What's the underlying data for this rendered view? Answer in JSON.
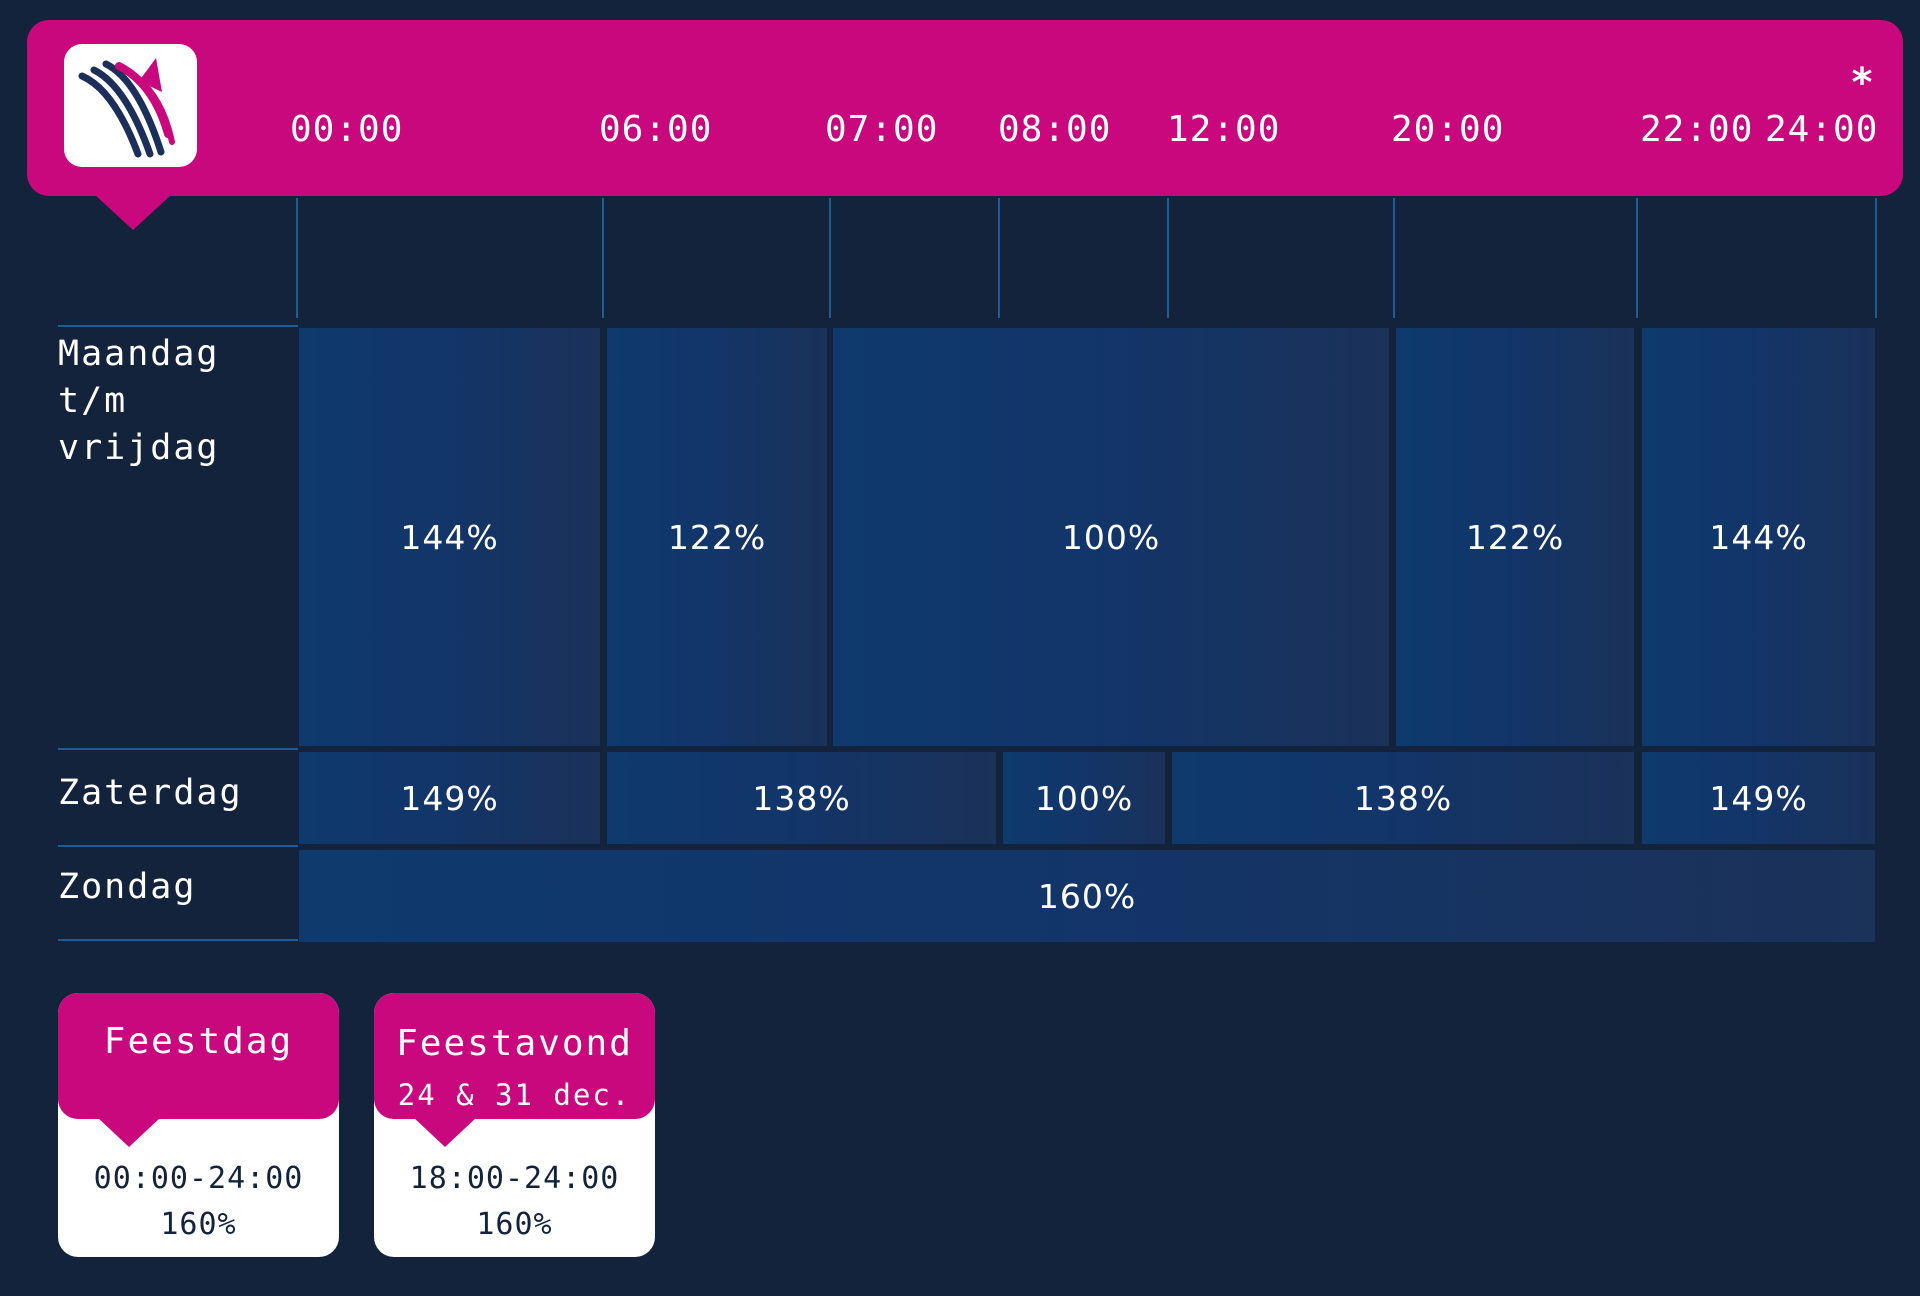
{
  "colors": {
    "background": "#14233c",
    "accent": "#c8087c",
    "cell": "#0e3a6d",
    "grid_line": "#1f5c93",
    "card": "#ffffff"
  },
  "logo": {
    "icon": "brand-logo-icon"
  },
  "timeline": {
    "labels": [
      "00:00",
      "06:00",
      "07:00",
      "08:00",
      "12:00",
      "20:00",
      "22:00",
      "24:00"
    ],
    "footnote_mark": "*"
  },
  "schedule": {
    "weekday": {
      "label": "Maandag\nt/m\nvrijdag",
      "cells": [
        {
          "span": "00:00-06:00",
          "value": "144%"
        },
        {
          "span": "06:00-07:00",
          "value": "122%"
        },
        {
          "span": "07:00-20:00",
          "value": "100%"
        },
        {
          "span": "20:00-22:00",
          "value": "122%"
        },
        {
          "span": "22:00-24:00",
          "value": "144%"
        }
      ]
    },
    "saturday": {
      "label": "Zaterdag",
      "cells": [
        {
          "span": "00:00-06:00",
          "value": "149%"
        },
        {
          "span": "06:00-08:00",
          "value": "138%"
        },
        {
          "span": "08:00-12:00",
          "value": "100%"
        },
        {
          "span": "12:00-22:00",
          "value": "138%"
        },
        {
          "span": "22:00-24:00",
          "value": "149%"
        }
      ]
    },
    "sunday": {
      "label": "Zondag",
      "cells": [
        {
          "span": "00:00-24:00",
          "value": "160%"
        }
      ]
    }
  },
  "cards": [
    {
      "title": "Feestdag",
      "subtitle": "",
      "time": "00:00-24:00",
      "value": "160%"
    },
    {
      "title": "Feestavond",
      "subtitle": "24 & 31 dec.",
      "time": "18:00-24:00",
      "value": "160%"
    }
  ]
}
